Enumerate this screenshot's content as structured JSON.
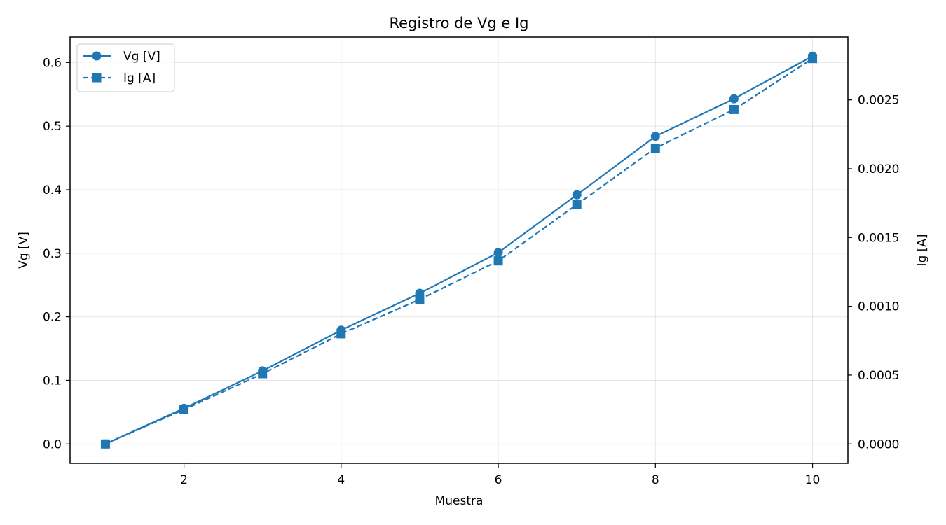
{
  "chart_data": {
    "type": "line",
    "title": "Registro de Vg e Ig",
    "xlabel": "Muestra",
    "ylabel_left": "Vg [V]",
    "ylabel_right": "Ig [A]",
    "x": [
      1,
      2,
      3,
      4,
      5,
      6,
      7,
      8,
      9,
      10
    ],
    "xticks": [
      "2",
      "4",
      "6",
      "8",
      "10"
    ],
    "yticks_left": [
      "0.0",
      "0.1",
      "0.2",
      "0.3",
      "0.4",
      "0.5",
      "0.6"
    ],
    "yticks_right": [
      "0.0000",
      "0.0005",
      "0.0010",
      "0.0015",
      "0.0020",
      "0.0025"
    ],
    "xlim": [
      0.55,
      10.45
    ],
    "ylim_left": [
      -0.0305,
      0.64
    ],
    "ylim_right": [
      -0.000141,
      0.002956
    ],
    "grid": true,
    "legend_position": "top-left",
    "series": [
      {
        "name": "Vg [V]",
        "axis": "left",
        "marker": "circle",
        "linestyle": "solid",
        "color": "#1f77b4",
        "values": [
          0.0,
          0.056,
          0.115,
          0.179,
          0.237,
          0.301,
          0.392,
          0.484,
          0.543,
          0.61
        ]
      },
      {
        "name": "Ig [A]",
        "axis": "right",
        "marker": "square",
        "linestyle": "dashed",
        "color": "#1f77b4",
        "values": [
          0.0,
          0.00025,
          0.00051,
          0.0008,
          0.00105,
          0.00133,
          0.00174,
          0.00215,
          0.00243,
          0.0028
        ]
      }
    ]
  }
}
